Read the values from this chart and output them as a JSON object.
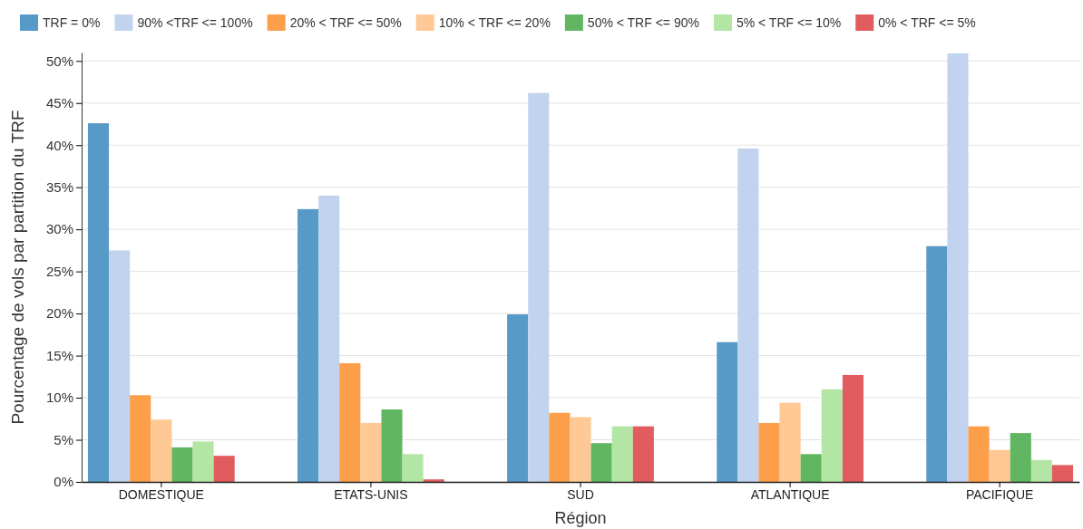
{
  "chart_data": {
    "type": "bar",
    "xlabel": "Région",
    "ylabel": "Pourcentage de vols par partition du TRF",
    "categories": [
      "DOMESTIQUE",
      "ETATS-UNIS",
      "SUD",
      "ATLANTIQUE",
      "PACIFIQUE"
    ],
    "series": [
      {
        "name": "TRF = 0%",
        "color": "#5799c7",
        "values": [
          42.6,
          32.4,
          19.9,
          16.6,
          28.0
        ]
      },
      {
        "name": "90% <TRF <= 100%",
        "color": "#c1d3ee",
        "values": [
          27.5,
          34.0,
          46.2,
          39.6,
          50.9
        ]
      },
      {
        "name": "20% < TRF <= 50%",
        "color": "#fd9e4a",
        "values": [
          10.3,
          14.1,
          8.2,
          7.0,
          6.6
        ]
      },
      {
        "name": "10% < TRF <= 20%",
        "color": "#fec994",
        "values": [
          7.4,
          7.0,
          7.7,
          9.4,
          3.8
        ]
      },
      {
        "name": "50% < TRF <= 90%",
        "color": "#61b661",
        "values": [
          4.1,
          8.6,
          4.6,
          3.3,
          5.8
        ]
      },
      {
        "name": "5% < TRF <= 10%",
        "color": "#b3e6a5",
        "values": [
          4.8,
          3.3,
          6.6,
          11.0,
          2.6
        ]
      },
      {
        "name": "0% < TRF <= 5%",
        "color": "#e15c5e",
        "values": [
          3.1,
          0.3,
          6.6,
          12.7,
          2.0
        ]
      }
    ],
    "ylim": [
      0,
      51
    ],
    "yticks": [
      {
        "value": 0,
        "label": "0%"
      },
      {
        "value": 5,
        "label": "5%"
      },
      {
        "value": 10,
        "label": "10%"
      },
      {
        "value": 15,
        "label": "15%"
      },
      {
        "value": 20,
        "label": "20%"
      },
      {
        "value": 25,
        "label": "25%"
      },
      {
        "value": 30,
        "label": "30%"
      },
      {
        "value": 35,
        "label": "35%"
      },
      {
        "value": 40,
        "label": "40%"
      },
      {
        "value": 45,
        "label": "45%"
      },
      {
        "value": 50,
        "label": "50%"
      }
    ],
    "grid": "y",
    "legend": "top"
  }
}
